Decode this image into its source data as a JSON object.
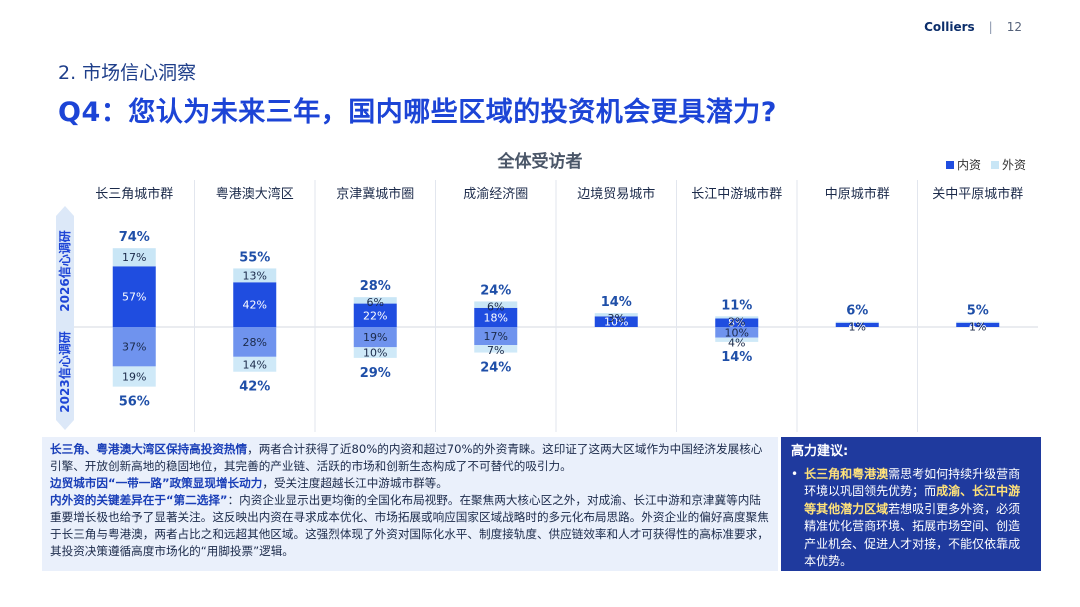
{
  "header": {
    "brand": "Colliers",
    "separator": "|",
    "page_number": "12"
  },
  "section_title": "2. 市场信心洞察",
  "question": "Q4：您认为未来三年，国内哪些区域的投资机会更具潜力?",
  "legend": {
    "domestic": "内资",
    "foreign": "外资"
  },
  "colors": {
    "domestic_2026": "#1f4de0",
    "foreign_2026": "#c9e6f6",
    "domestic_2023": "#6f93ee",
    "foreign_2023": "#cfe9f8"
  },
  "chart_data": {
    "type": "bar",
    "title": "全体受访者",
    "upper_period": "2026信心调研",
    "lower_period": "2023信心调研",
    "categories": [
      "长三角城市群",
      "粤港澳大湾区",
      "京津冀城市圈",
      "成渝经济圈",
      "边境贸易城市",
      "长江中游城市群",
      "中原城市群",
      "关中平原城市群"
    ],
    "series": [
      {
        "name": "内资",
        "period": "2026信心调研",
        "values": [
          57,
          42,
          22,
          18,
          10,
          8,
          4,
          4
        ]
      },
      {
        "name": "外资",
        "period": "2026信心调研",
        "values": [
          17,
          13,
          6,
          6,
          3,
          2,
          1,
          1
        ]
      },
      {
        "name": "内资",
        "period": "2023信心调研",
        "values": [
          37,
          28,
          19,
          17,
          null,
          10,
          null,
          null
        ]
      },
      {
        "name": "外资",
        "period": "2023信心调研",
        "values": [
          19,
          14,
          10,
          7,
          null,
          4,
          null,
          null
        ]
      }
    ],
    "totals_2026": [
      "74%",
      "55%",
      "28%",
      "24%",
      "14%",
      "11%",
      "6%",
      "5%"
    ],
    "totals_2023": [
      "56%",
      "42%",
      "29%",
      "24%",
      "",
      "14%",
      "",
      ""
    ],
    "ylim_upper": [
      0,
      74
    ],
    "ylim_lower": [
      0,
      56
    ]
  },
  "findings": [
    {
      "bold": "长三角、粤港澳大湾区保持高投资热情",
      "text": "，两者合计获得了近80%的内资和超过70%的外资青睐。这印证了这两大区域作为中国经济发展核心引擎、开放创新高地的稳固地位，其完善的产业链、活跃的市场和创新生态构成了不可替代的吸引力。"
    },
    {
      "bold": "边贸城市因“一带一路”政策显现增长动力",
      "text": "，受关注度超越长江中游城市群等。"
    },
    {
      "bold": "内外资的关键差异在于“第二选择”",
      "text": "：内资企业显示出更均衡的全国化布局视野。在聚焦两大核心区之外，对成渝、长江中游和京津冀等内陆重要增长极也给予了显著关注。这反映出内资在寻求成本优化、市场拓展或响应国家区域战略时的多元化布局思路。外资企业的偏好高度聚焦于长三角与粤港澳，两者占比之和远超其他区域。这强烈体现了外资对国际化水平、制度接轨度、供应链效率和人才可获得性的高标准要求，其投资决策遵循高度市场化的“用脚投票”逻辑。"
    }
  ],
  "advice": {
    "heading": "高力建议:",
    "bullet": "•",
    "bold1": "长三角和粤港澳",
    "text1": "需思考如何持续升级营商环境以巩固领先优势；而",
    "bold2": "成渝、长江中游等其他潜力区域",
    "text2": "若想吸引更多外资，必须精准优化营商环境、拓展市场空间、创造产业机会、促进人才对接，不能仅依靠成本优势。"
  }
}
